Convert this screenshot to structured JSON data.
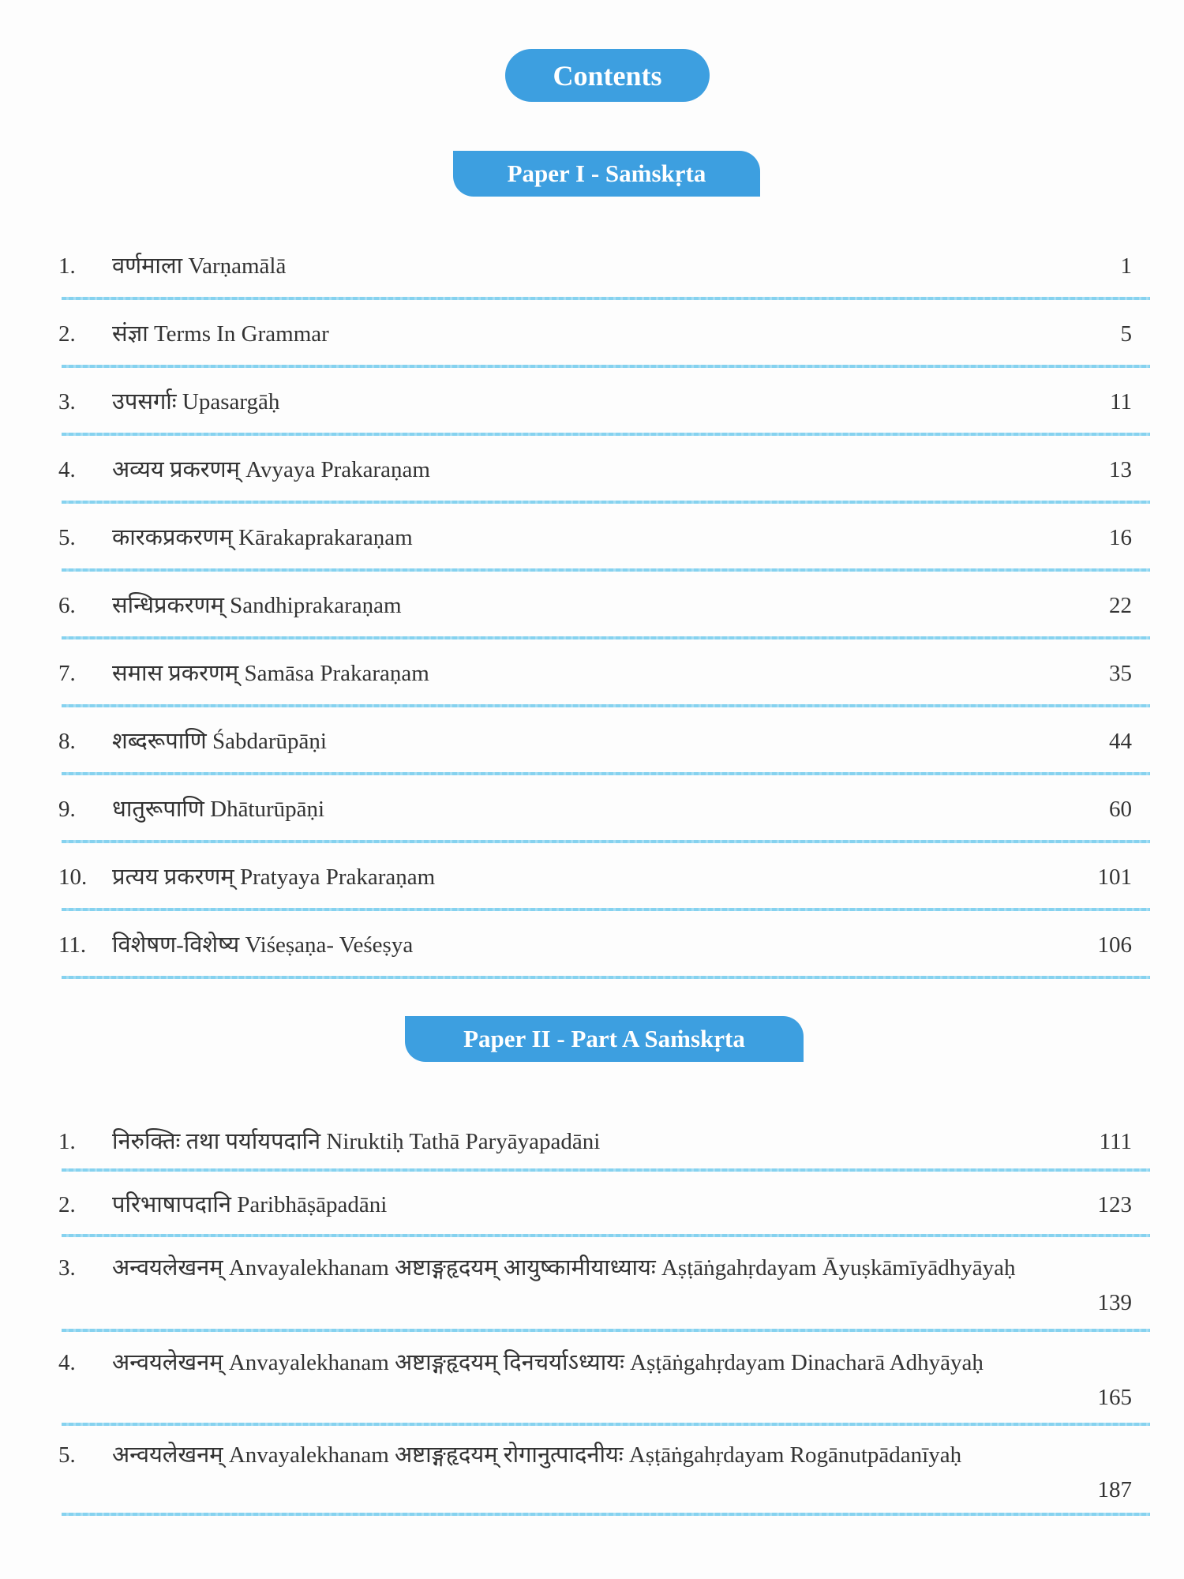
{
  "heading": "Contents",
  "sections": [
    {
      "title": "Paper I - Saṁskṛta",
      "entries": [
        {
          "num": "1.",
          "title": "वर्णमाला Varṇamālā",
          "page": "1"
        },
        {
          "num": "2.",
          "title": "संज्ञा Terms In Grammar",
          "page": "5"
        },
        {
          "num": "3.",
          "title": "उपसर्गाः Upasargāḥ",
          "page": "11"
        },
        {
          "num": "4.",
          "title": "अव्यय प्रकरणम् Avyaya Prakaraṇam",
          "page": "13"
        },
        {
          "num": "5.",
          "title": "कारकप्रकरणम् Kārakaprakaraṇam",
          "page": "16"
        },
        {
          "num": "6.",
          "title": "सन्धिप्रकरणम् Sandhiprakaraṇam",
          "page": "22"
        },
        {
          "num": "7.",
          "title": "समास प्रकरणम् Samāsa Prakaraṇam",
          "page": "35"
        },
        {
          "num": "8.",
          "title": "शब्दरूपाणि Śabdarūpāṇi",
          "page": "44"
        },
        {
          "num": "9.",
          "title": "धातुरूपाणि Dhāturūpāṇi",
          "page": "60"
        },
        {
          "num": "10.",
          "title": "प्रत्यय प्रकरणम् Pratyaya Prakaraṇam",
          "page": "101"
        },
        {
          "num": "11.",
          "title": "विशेषण-विशेष्य Viśeṣaṇa- Veśeṣya",
          "page": "106"
        }
      ]
    },
    {
      "title": "Paper II - Part A Saṁskṛta",
      "entries": [
        {
          "num": "1.",
          "title": "निरुक्तिः तथा पर्यायपदानि Niruktiḥ Tathā Paryāyapadāni",
          "page": "111"
        },
        {
          "num": "2.",
          "title": "परिभाषापदानि Paribhāṣāpadāni",
          "page": "123"
        },
        {
          "num": "3.",
          "title": "अन्वयलेखनम् Anvayalekhanam अष्टाङ्गहृदयम् आयुष्कामीयाध्यायः Aṣṭāṅgahṛdayam Āyuṣkāmīyādhyāyaḥ",
          "page": "139"
        },
        {
          "num": "4.",
          "title": "अन्वयलेखनम् Anvayalekhanam अष्टाङ्गहृदयम् दिनचर्याऽध्यायः Aṣṭāṅgahṛdayam Dinacharā Adhyāyaḥ",
          "page": "165"
        },
        {
          "num": "5.",
          "title": "अन्वयलेखनम् Anvayalekhanam अष्टाङ्गहृदयम् रोगानुत्पादनीयः Aṣṭāṅgahṛdayam Rogānutpādanīyaḥ",
          "page": "187"
        }
      ]
    }
  ],
  "colors": {
    "accent": "#3d9fe0",
    "rule": "#86d2ef"
  }
}
